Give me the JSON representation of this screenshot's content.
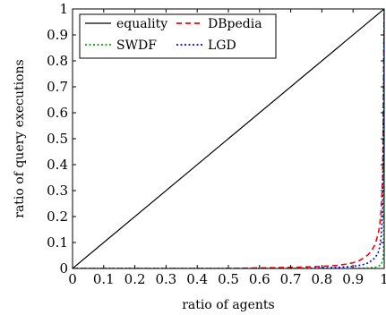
{
  "chart_data": {
    "type": "line",
    "title": "",
    "xlabel": "ratio of agents",
    "ylabel": "ratio of query executions",
    "xlim": [
      0,
      1
    ],
    "ylim": [
      0,
      1
    ],
    "xticks": [
      "0",
      "0.1",
      "0.2",
      "0.3",
      "0.4",
      "0.5",
      "0.6",
      "0.7",
      "0.8",
      "0.9",
      "1"
    ],
    "yticks": [
      "0",
      "0.1",
      "0.2",
      "0.3",
      "0.4",
      "0.5",
      "0.6",
      "0.7",
      "0.8",
      "0.9",
      "1"
    ],
    "grid": false,
    "legend_position": "top-left",
    "series": [
      {
        "name": "equality",
        "color": "#000000",
        "dash": "solid",
        "x": [
          0,
          1
        ],
        "y": [
          0,
          1
        ]
      },
      {
        "name": "DBpedia",
        "color": "#ff0000",
        "dash": "dashed",
        "x": [
          0,
          0.5,
          0.6,
          0.7,
          0.75,
          0.8,
          0.85,
          0.88,
          0.9,
          0.92,
          0.94,
          0.95,
          0.96,
          0.97,
          0.98,
          0.985,
          0.99,
          0.995,
          1.0
        ],
        "y": [
          0,
          0,
          0.002,
          0.004,
          0.006,
          0.008,
          0.012,
          0.017,
          0.022,
          0.03,
          0.045,
          0.055,
          0.07,
          0.09,
          0.13,
          0.16,
          0.22,
          0.35,
          1.0
        ]
      },
      {
        "name": "SWDF",
        "color": "#00aa00",
        "dash": "dotted",
        "x": [
          0,
          0.9,
          0.95,
          0.97,
          0.98,
          0.99,
          0.995,
          0.998,
          1.0
        ],
        "y": [
          0,
          0,
          0.002,
          0.004,
          0.008,
          0.015,
          0.03,
          0.06,
          1.0
        ]
      },
      {
        "name": "LGD",
        "color": "#0000ff",
        "dash": "dotted",
        "x": [
          0,
          0.7,
          0.8,
          0.85,
          0.9,
          0.93,
          0.95,
          0.97,
          0.98,
          0.985,
          0.99,
          0.995,
          1.0
        ],
        "y": [
          0,
          0,
          0.002,
          0.004,
          0.008,
          0.014,
          0.022,
          0.04,
          0.06,
          0.08,
          0.12,
          0.22,
          1.0
        ]
      }
    ]
  }
}
